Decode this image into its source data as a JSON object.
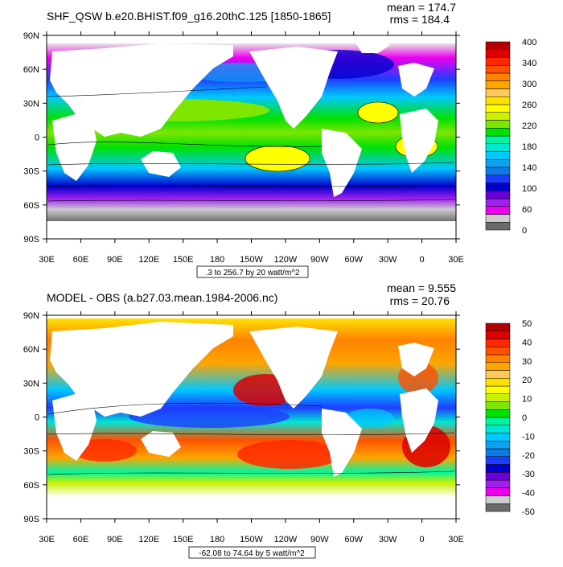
{
  "chart_data": [
    {
      "type": "heatmap",
      "title": "SHF_QSW b.e20.BHIST.f09_g16.20thC.125 [1850-1865]",
      "mean_label": "mean = 174.7",
      "rms_label": "rms = 184.4",
      "x_ticks": [
        "30E",
        "60E",
        "90E",
        "120E",
        "150E",
        "180",
        "150W",
        "120W",
        "90W",
        "60W",
        "30W",
        "0",
        "30E"
      ],
      "y_ticks": [
        "90N",
        "60N",
        "30N",
        "0",
        "30S",
        "60S",
        "90S"
      ],
      "xlim": [
        30,
        390
      ],
      "ylim": [
        -90,
        90
      ],
      "contour_info": ".3 to 256.7 by 20 watt/m^2",
      "colorbar_labels": [
        "400",
        "340",
        "300",
        "260",
        "220",
        "180",
        "140",
        "100",
        "60",
        "0"
      ],
      "colorbar_colors": [
        "#6a6a6a",
        "#cccccc",
        "#ee00ee",
        "#a020f0",
        "#6a00d8",
        "#0000cd",
        "#1e3cff",
        "#0f78e6",
        "#0fa0f0",
        "#00c8ff",
        "#00e6d2",
        "#00f5a0",
        "#00e100",
        "#7ee600",
        "#c8f000",
        "#ffff00",
        "#ffe100",
        "#ffc85a",
        "#ffa500",
        "#ff8200",
        "#ff5000",
        "#ff2800",
        "#dc0000",
        "#b40000"
      ]
    },
    {
      "type": "heatmap",
      "title": "MODEL - OBS (a.b27.03.mean.1984-2006.nc)",
      "mean_label": "mean = 9.555",
      "rms_label": "rms = 20.76",
      "x_ticks": [
        "30E",
        "60E",
        "90E",
        "120E",
        "150E",
        "180",
        "150W",
        "120W",
        "90W",
        "60W",
        "30W",
        "0",
        "30E"
      ],
      "y_ticks": [
        "90N",
        "60N",
        "30N",
        "0",
        "30S",
        "60S",
        "90S"
      ],
      "xlim": [
        30,
        390
      ],
      "ylim": [
        -90,
        90
      ],
      "contour_info": "-62.08 to 74.64 by 5 watt/m^2",
      "colorbar_labels": [
        "50",
        "40",
        "30",
        "20",
        "10",
        "0",
        "-10",
        "-20",
        "-30",
        "-40",
        "-50"
      ],
      "colorbar_colors": [
        "#6a6a6a",
        "#cccccc",
        "#ee00ee",
        "#a020f0",
        "#6a00d8",
        "#0000cd",
        "#1e3cff",
        "#0f78e6",
        "#0fa0f0",
        "#00c8ff",
        "#00e6d2",
        "#00f5a0",
        "#00e100",
        "#7ee600",
        "#c8f000",
        "#ffff00",
        "#ffe100",
        "#ffc85a",
        "#ffa500",
        "#ff8200",
        "#ff5000",
        "#ff2800",
        "#dc0000",
        "#b40000"
      ]
    }
  ]
}
